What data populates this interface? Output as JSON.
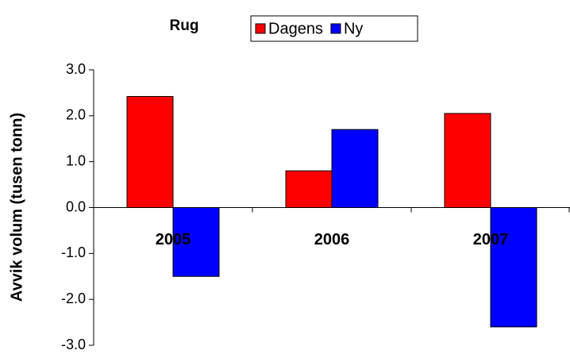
{
  "chart_data": {
    "type": "bar",
    "title": "Rug",
    "y_label": "Avvik volum (tusen tonn)",
    "categories": [
      "2005",
      "2006",
      "2007"
    ],
    "series": [
      {
        "name": "Dagens",
        "color": "#ff0000",
        "values": [
          2.42,
          0.8,
          2.05
        ]
      },
      {
        "name": "Ny",
        "color": "#0000ff",
        "values": [
          -1.5,
          1.7,
          -2.6
        ]
      }
    ],
    "ylim": [
      -3,
      3
    ],
    "yticks": [
      {
        "value": -3,
        "label": "-3.0"
      },
      {
        "value": -2,
        "label": "-2.0"
      },
      {
        "value": -1,
        "label": "-1.0"
      },
      {
        "value": 0,
        "label": "0.0"
      },
      {
        "value": 1,
        "label": "1.0"
      },
      {
        "value": 2,
        "label": "2.0"
      },
      {
        "value": 3,
        "label": "3.0"
      }
    ],
    "grid": false,
    "legend": "top"
  }
}
